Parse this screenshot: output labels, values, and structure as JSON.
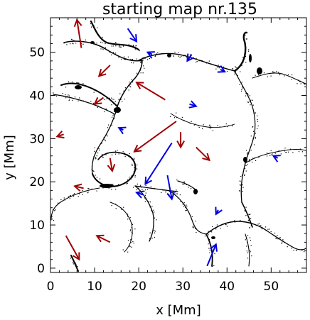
{
  "chart_data": {
    "type": "scatter",
    "title": "starting map nr.135",
    "xlabel": "x [Mm]",
    "ylabel": "y [Mm]",
    "xlim": [
      0,
      58
    ],
    "ylim": [
      -1,
      58
    ],
    "xticks": [
      0,
      10,
      20,
      30,
      40,
      50
    ],
    "yticks": [
      0,
      10,
      20,
      30,
      40,
      50
    ],
    "grid": false,
    "colors": {
      "red_arrows": "#a00000",
      "blue_arrows": "#0000e0",
      "features": "#000000"
    },
    "series": [
      {
        "color": "red",
        "arrows": [
          {
            "x0": 7.0,
            "y0": 51.0,
            "x1": 6.0,
            "y1": 57.5
          },
          {
            "x0": 13.5,
            "y0": 47.0,
            "x1": 11.0,
            "y1": 44.5
          },
          {
            "x0": 26.0,
            "y0": 39.0,
            "x1": 19.5,
            "y1": 43.0
          },
          {
            "x0": 12.0,
            "y0": 39.5,
            "x1": 10.0,
            "y1": 38.0
          },
          {
            "x0": 3.0,
            "y0": 31.0,
            "x1": 1.5,
            "y1": 30.5
          },
          {
            "x0": 28.5,
            "y0": 34.0,
            "x1": 19.0,
            "y1": 27.0
          },
          {
            "x0": 29.5,
            "y0": 31.5,
            "x1": 29.5,
            "y1": 28.0
          },
          {
            "x0": 33.0,
            "y0": 28.0,
            "x1": 36.0,
            "y1": 25.0
          },
          {
            "x0": 13.5,
            "y0": 25.5,
            "x1": 14.0,
            "y1": 22.5
          },
          {
            "x0": 7.5,
            "y0": 18.5,
            "x1": 5.5,
            "y1": 19.0
          },
          {
            "x0": 3.5,
            "y0": 7.5,
            "x1": 6.5,
            "y1": 2.0
          },
          {
            "x0": 13.5,
            "y0": 6.0,
            "x1": 10.5,
            "y1": 7.5
          }
        ]
      },
      {
        "color": "blue",
        "arrows": [
          {
            "x0": 17.5,
            "y0": 55.5,
            "x1": 19.5,
            "y1": 52.5
          },
          {
            "x0": 23.0,
            "y0": 49.5,
            "x1": 22.0,
            "y1": 50.0
          },
          {
            "x0": 32.0,
            "y0": 49.5,
            "x1": 31.0,
            "y1": 48.0
          },
          {
            "x0": 38.5,
            "y0": 46.0,
            "x1": 39.5,
            "y1": 45.5
          },
          {
            "x0": 31.5,
            "y0": 38.0,
            "x1": 33.0,
            "y1": 37.5
          },
          {
            "x0": 16.5,
            "y0": 32.0,
            "x1": 15.5,
            "y1": 32.5
          },
          {
            "x0": 27.5,
            "y0": 29.0,
            "x1": 21.5,
            "y1": 19.5
          },
          {
            "x0": 26.5,
            "y0": 21.5,
            "x1": 27.5,
            "y1": 16.0
          },
          {
            "x0": 21.0,
            "y0": 17.0,
            "x1": 19.5,
            "y1": 17.5
          },
          {
            "x0": 51.5,
            "y0": 25.5,
            "x1": 50.5,
            "y1": 26.0
          },
          {
            "x0": 38.0,
            "y0": 13.5,
            "x1": 37.5,
            "y1": 12.5
          },
          {
            "x0": 35.5,
            "y0": 0.5,
            "x1": 37.5,
            "y1": 5.5
          }
        ]
      }
    ]
  }
}
